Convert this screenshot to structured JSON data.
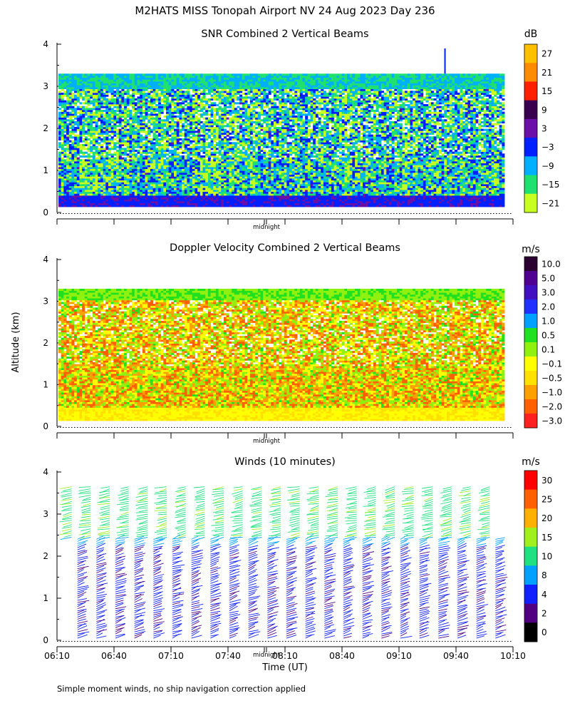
{
  "page": {
    "title": "M2HATS MISS Tonopah Airport NV  24 Aug 2023 Day 236",
    "shared_ylabel": "Altitude (km)",
    "xlabel": "Time (UT)",
    "footer": "Simple moment winds, no ship navigation correction applied",
    "midnight_label": "midnight"
  },
  "chart_data": [
    {
      "type": "heatmap",
      "title": "SNR Combined 2 Vertical Beams",
      "unit": "dB",
      "yticks": [
        "0",
        "1",
        "2",
        "3",
        "4"
      ],
      "ylim": [
        0,
        4
      ],
      "time_range_hours": [
        6.1667,
        10.1667
      ],
      "colorbar": {
        "labels": [
          "27",
          "21",
          "15",
          "9",
          "3",
          "−3",
          "−9",
          "−15",
          "−21"
        ],
        "colors": [
          "#ffc000",
          "#ff8c00",
          "#ff2000",
          "#3a0050",
          "#6a10a8",
          "#0020ff",
          "#00b0ff",
          "#20e070",
          "#c8ff20"
        ]
      },
      "data_top_km": 3.3,
      "spike": {
        "time_h": 9.57,
        "top_km": 3.9
      }
    },
    {
      "type": "heatmap",
      "title": "Doppler Velocity Combined 2 Vertical Beams",
      "unit": "m/s",
      "yticks": [
        "0",
        "1",
        "2",
        "3",
        "4"
      ],
      "ylim": [
        0,
        4
      ],
      "time_range_hours": [
        6.1667,
        10.1667
      ],
      "colorbar": {
        "labels": [
          "10.0",
          "5.0",
          "3.0",
          "2.0",
          "1.0",
          "0.5",
          "0.1",
          "−0.1",
          "−0.5",
          "−1.0",
          "−2.0",
          "−3.0"
        ],
        "colors": [
          "#2a0030",
          "#500090",
          "#4010c0",
          "#2030ff",
          "#00a0ff",
          "#20e020",
          "#90f010",
          "#ffff00",
          "#ffe000",
          "#ffa000",
          "#ff6000",
          "#ff2020"
        ]
      },
      "data_top_km": 3.3
    },
    {
      "type": "scatter",
      "title": "Winds (10 minutes)",
      "unit": "m/s",
      "yticks": [
        "0",
        "1",
        "2",
        "3",
        "4"
      ],
      "ylim": [
        0,
        4
      ],
      "xticks": [
        "06:10",
        "06:40",
        "07:10",
        "07:40",
        "08:10",
        "08:40",
        "09:10",
        "09:40",
        "10:10"
      ],
      "xlim_hours": [
        6.1667,
        10.1667
      ],
      "profile_interval_min": 10,
      "profile_top_km": 3.65,
      "colorbar": {
        "labels": [
          "30",
          "25",
          "20",
          "15",
          "10",
          "8",
          "4",
          "2",
          "0"
        ],
        "colors": [
          "#ff0000",
          "#ff6000",
          "#ffb000",
          "#a0f020",
          "#20e080",
          "#00a0ff",
          "#1020ff",
          "#500080",
          "#000000"
        ]
      }
    }
  ]
}
